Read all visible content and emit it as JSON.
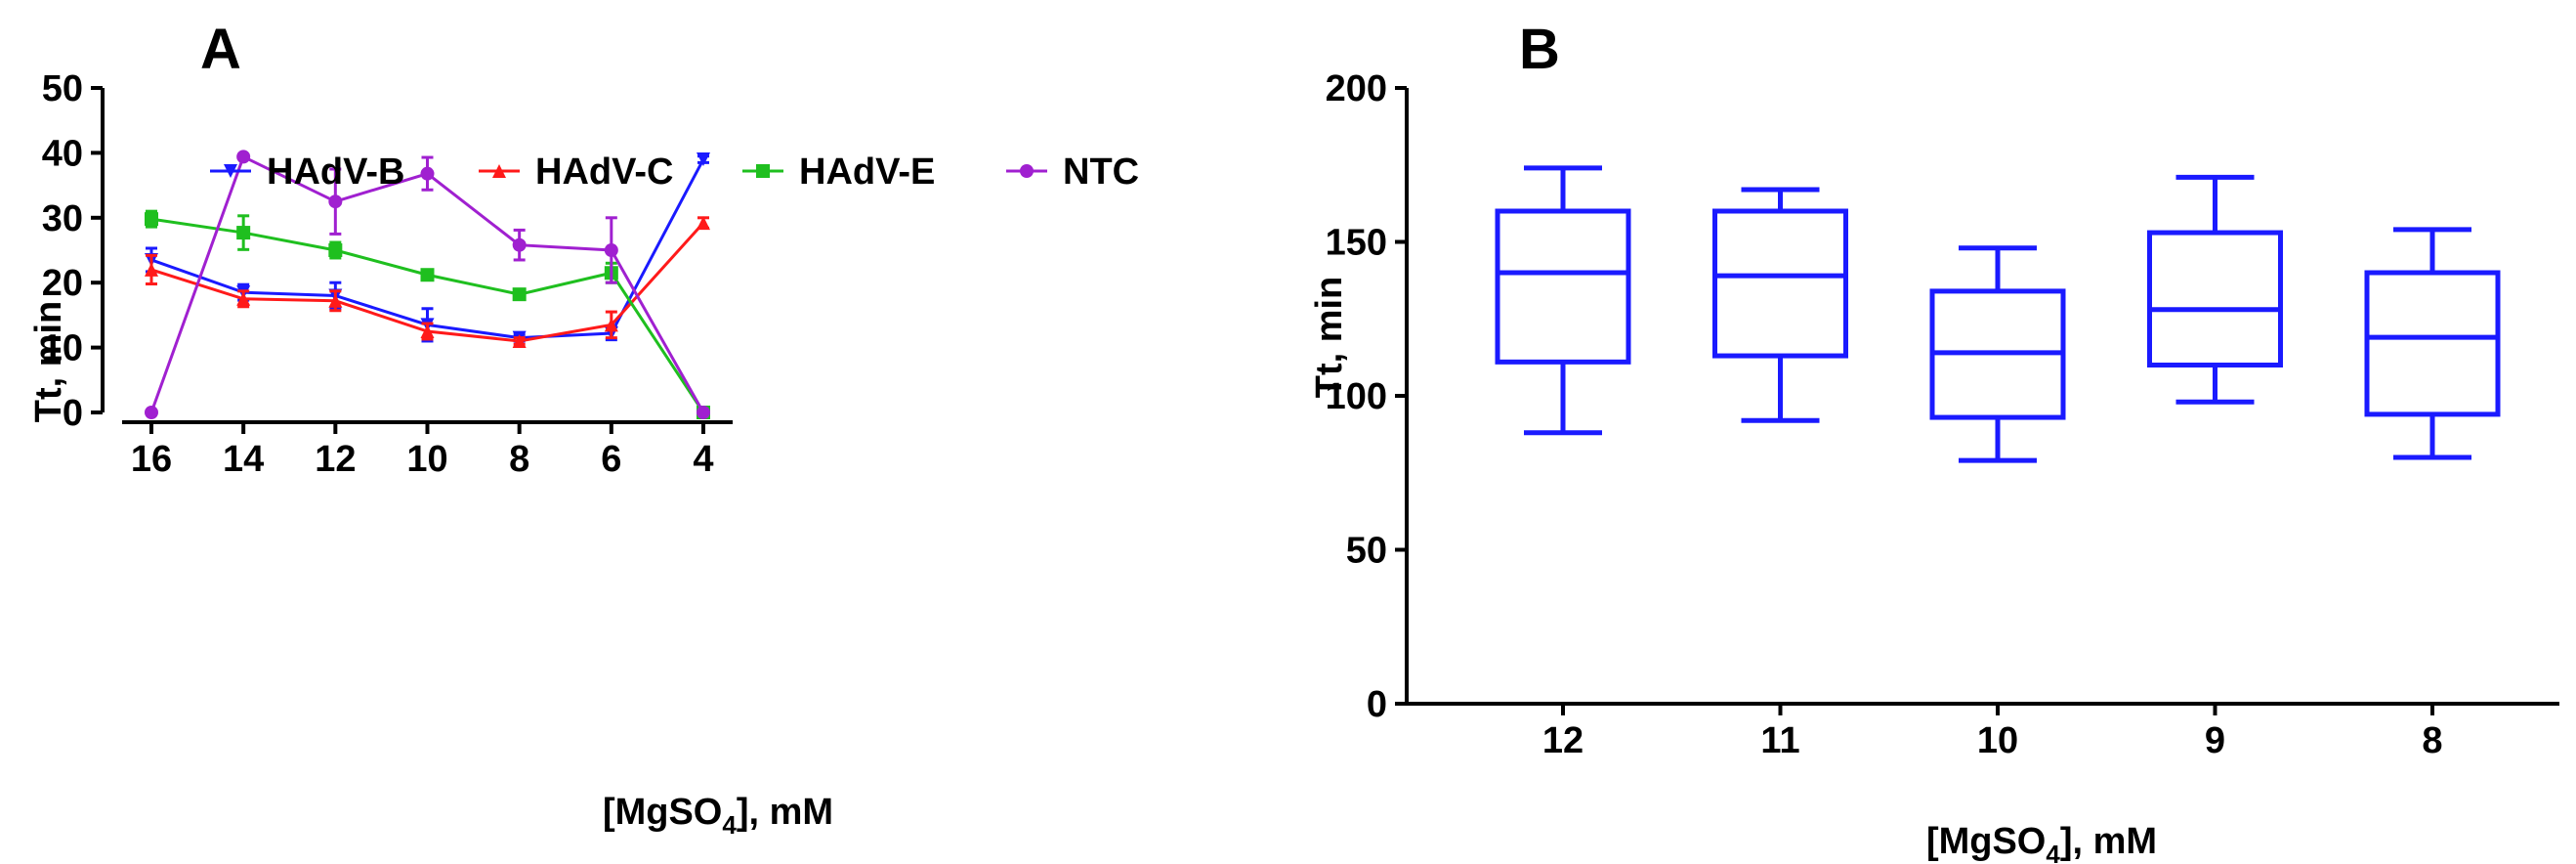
{
  "chart_data": [
    {
      "panel": "A",
      "type": "line",
      "xlabel": "[MgSO4], mM",
      "xlabel_main": "[MgSO",
      "xlabel_sub": "4",
      "xlabel_tail": "], mM",
      "ylabel": "Tt, min",
      "categories": [
        "16",
        "14",
        "12",
        "10",
        "8",
        "6",
        "4"
      ],
      "ylim": [
        0,
        50
      ],
      "yticks": [
        "0",
        "10",
        "20",
        "30",
        "40",
        "50"
      ],
      "series": [
        {
          "name": "HAdV-B",
          "color": "#1a1aff",
          "marker": "triangle-down",
          "values": [
            23.5,
            18.5,
            18,
            13.5,
            11.5,
            12.2,
            39
          ],
          "errors": [
            1.8,
            1.2,
            2,
            2.5,
            0.5,
            1,
            0.5
          ]
        },
        {
          "name": "HAdV-C",
          "color": "#ff1a1a",
          "marker": "triangle-up",
          "values": [
            22,
            17.5,
            17.2,
            12.5,
            11,
            13.5,
            29.2
          ],
          "errors": [
            2.2,
            1.2,
            1.5,
            1.2,
            0.5,
            2,
            0.8
          ]
        },
        {
          "name": "HAdV-E",
          "color": "#1fbf1f",
          "marker": "square",
          "values": [
            29.8,
            27.7,
            25,
            21.2,
            18.2,
            21.5,
            0
          ],
          "errors": [
            1.2,
            2.6,
            1.2,
            0.6,
            0.3,
            1.5,
            0
          ]
        },
        {
          "name": "NTC",
          "color": "#a020d0",
          "marker": "circle",
          "values": [
            0,
            39.4,
            32.5,
            36.8,
            25.8,
            25,
            0
          ],
          "errors": [
            0,
            0.3,
            5,
            2.5,
            2.3,
            5,
            0
          ]
        }
      ]
    },
    {
      "panel": "B",
      "type": "box",
      "xlabel": "[MgSO4], mM",
      "xlabel_main": "[MgSO",
      "xlabel_sub": "4",
      "xlabel_tail": "], mM",
      "ylabel": "Tt, min",
      "categories": [
        "12",
        "11",
        "10",
        "9",
        "8"
      ],
      "ylim": [
        0,
        200
      ],
      "yticks": [
        "0",
        "50",
        "100",
        "150",
        "200"
      ],
      "color": "#1a1aff",
      "boxes": [
        {
          "min": 88,
          "q1": 111,
          "median": 140,
          "q3": 160,
          "max": 174
        },
        {
          "min": 92,
          "q1": 113,
          "median": 139,
          "q3": 160,
          "max": 167
        },
        {
          "min": 79,
          "q1": 93,
          "median": 114,
          "q3": 134,
          "max": 148
        },
        {
          "min": 98,
          "q1": 110,
          "median": 128,
          "q3": 153,
          "max": 171
        },
        {
          "min": 80,
          "q1": 94,
          "median": 119,
          "q3": 140,
          "max": 154
        }
      ]
    }
  ]
}
